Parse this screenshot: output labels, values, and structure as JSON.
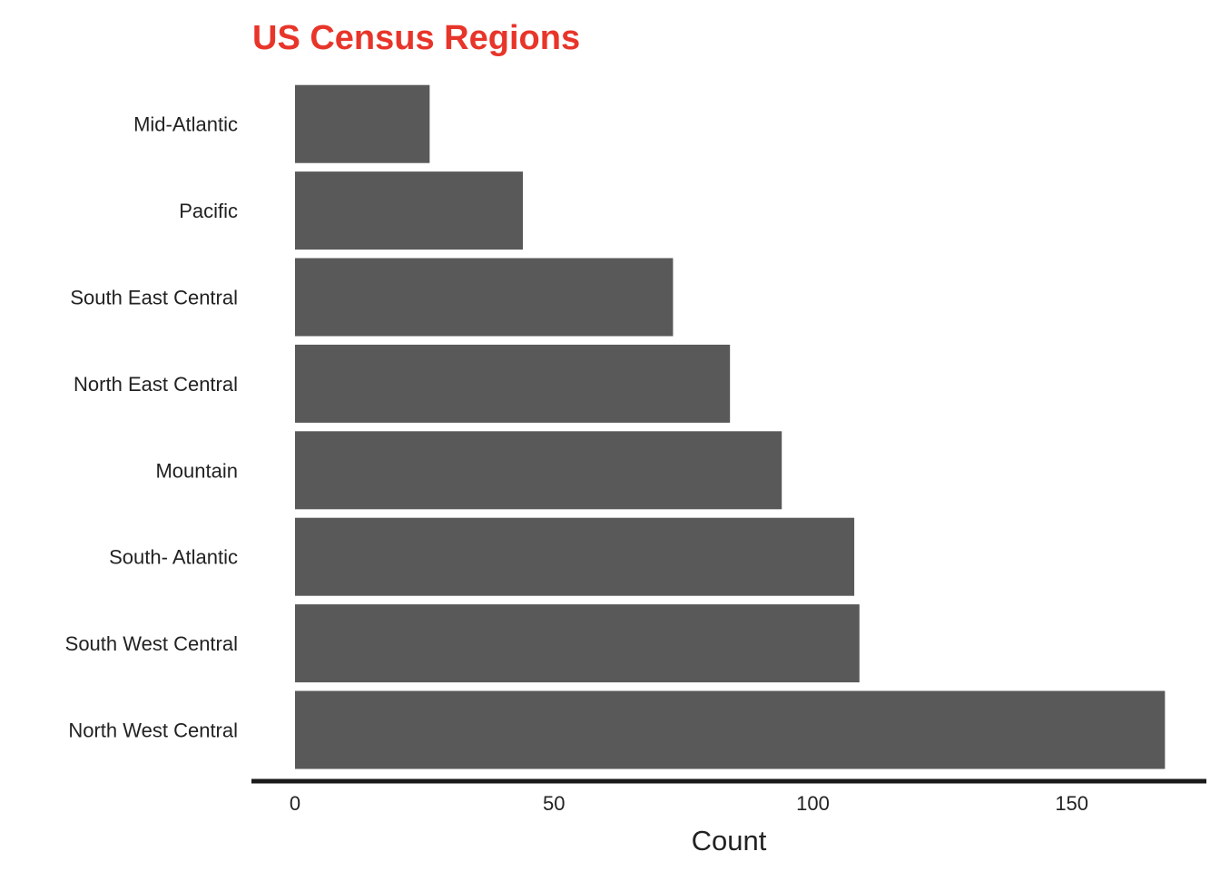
{
  "chart_data": {
    "type": "bar",
    "orientation": "horizontal",
    "title": "US Census Regions",
    "xlabel": "Count",
    "ylabel": "",
    "categories": [
      "Mid-Atlantic",
      "Pacific",
      "South East Central",
      "North East Central",
      "Mountain",
      "South- Atlantic",
      "South West Central",
      "North West Central"
    ],
    "values": [
      26,
      44,
      73,
      84,
      94,
      108,
      109,
      168
    ],
    "xlim": [
      0,
      176
    ],
    "xticks": [
      0,
      50,
      100,
      150
    ],
    "grid": false,
    "legend": "none"
  },
  "colors": {
    "title": "#e8352a",
    "bar": "#595959",
    "axis": "#1a1a1a"
  }
}
